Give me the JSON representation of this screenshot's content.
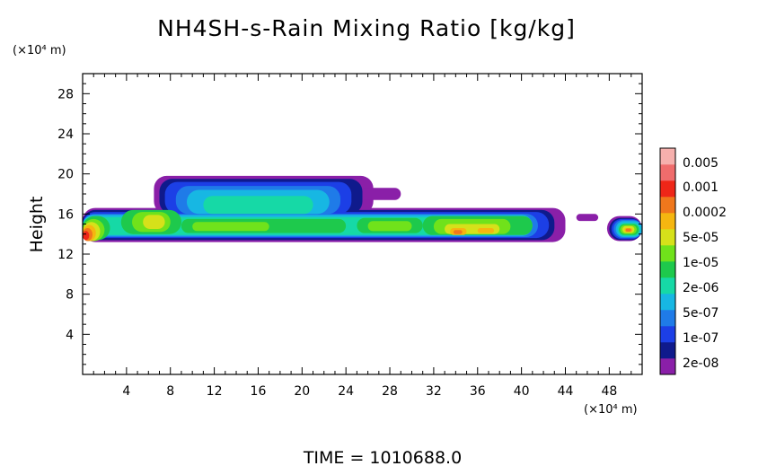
{
  "chart_data": {
    "type": "heatmap",
    "title": "NH4SH-s-Rain Mixing Ratio [kg/kg]",
    "ylabel": "Height",
    "y_unit": "(×10⁴ m)",
    "x_unit": "(×10⁴ m)",
    "footer": "TIME = 1010688.0",
    "xlim": [
      0,
      51
    ],
    "ylim": [
      0,
      30
    ],
    "x_ticks": [
      4,
      8,
      12,
      16,
      20,
      24,
      28,
      32,
      36,
      40,
      44,
      48
    ],
    "y_ticks": [
      4,
      8,
      12,
      16,
      20,
      24,
      28
    ],
    "x_tick_labels": [
      "4",
      "8",
      "12",
      "16",
      "20",
      "24",
      "28",
      "32",
      "36",
      "40",
      "44",
      "48"
    ],
    "y_tick_labels": [
      "4",
      "8",
      "12",
      "16",
      "20",
      "24",
      "28"
    ],
    "colorbar": {
      "colors": [
        "#8a1fa8",
        "#0f1a8c",
        "#1c3fe6",
        "#1f7be8",
        "#17b7e3",
        "#16d9a6",
        "#1ec94c",
        "#70e21b",
        "#d6e11a",
        "#f5b610",
        "#f0771c",
        "#ee2618",
        "#f06c6c",
        "#f6b0ad"
      ],
      "labels": [
        "2e-08",
        "1e-07",
        "5e-07",
        "2e-06",
        "1e-05",
        "5e-05",
        "0.0002",
        "0.001",
        "0.005"
      ]
    },
    "field_description": "Mixing ratio layer between ~13.5 and ~16.5 (×10⁴ m) height spanning x≈0–44 and x≈48–51; upper plume reaching ~19.5 between x≈7–28; highest values (~0.001) near x≈0–1, y≈13.5 and x≈34, y≈14",
    "levels": [
      {
        "name": "level-2e-08",
        "color": "#8a1fa8",
        "blobs": [
          {
            "x": [
              0.0,
              44.0
            ],
            "y": [
              13.2,
              16.6
            ]
          },
          {
            "x": [
              6.5,
              26.5
            ],
            "y": [
              16.0,
              19.8
            ]
          },
          {
            "x": [
              24.0,
              29.0
            ],
            "y": [
              17.4,
              18.6
            ]
          },
          {
            "x": [
              47.8,
              51.0
            ],
            "y": [
              13.3,
              15.8
            ]
          },
          {
            "x": [
              45.0,
              47.0
            ],
            "y": [
              15.3,
              16.0
            ]
          }
        ]
      },
      {
        "name": "level-1e-07",
        "color": "#0f1a8c",
        "blobs": [
          {
            "x": [
              0.0,
              43.0
            ],
            "y": [
              13.4,
              16.4
            ]
          },
          {
            "x": [
              7.0,
              25.5
            ],
            "y": [
              16.0,
              19.5
            ]
          },
          {
            "x": [
              48.0,
              51.0
            ],
            "y": [
              13.4,
              15.6
            ]
          }
        ]
      },
      {
        "name": "level-5e-07",
        "color": "#1c3fe6",
        "blobs": [
          {
            "x": [
              0.0,
              42.5
            ],
            "y": [
              13.6,
              16.2
            ]
          },
          {
            "x": [
              7.5,
              24.5
            ],
            "y": [
              16.0,
              19.2
            ]
          },
          {
            "x": [
              48.2,
              51.0
            ],
            "y": [
              13.5,
              15.5
            ]
          }
        ]
      },
      {
        "name": "level-2e-06",
        "color": "#1f7be8",
        "blobs": [
          {
            "x": [
              0.0,
              41.5
            ],
            "y": [
              13.7,
              16.0
            ]
          },
          {
            "x": [
              8.5,
              23.5
            ],
            "y": [
              16.0,
              18.8
            ]
          },
          {
            "x": [
              48.4,
              51.0
            ],
            "y": [
              13.6,
              15.4
            ]
          }
        ]
      },
      {
        "name": "level-1e-05",
        "color": "#17b7e3",
        "blobs": [
          {
            "x": [
              0.0,
              41.0
            ],
            "y": [
              13.8,
              15.9
            ]
          },
          {
            "x": [
              9.5,
              22.5
            ],
            "y": [
              16.0,
              18.4
            ]
          },
          {
            "x": [
              48.6,
              51.0
            ],
            "y": [
              13.7,
              15.3
            ]
          }
        ]
      },
      {
        "name": "level-5e-05",
        "color": "#16d9a6",
        "blobs": [
          {
            "x": [
              0.0,
              40.0
            ],
            "y": [
              13.9,
              15.7
            ]
          },
          {
            "x": [
              11.0,
              21.0
            ],
            "y": [
              16.0,
              17.8
            ]
          },
          {
            "x": [
              48.8,
              50.8
            ],
            "y": [
              13.8,
              15.1
            ]
          }
        ]
      },
      {
        "name": "level-0.0002",
        "color": "#1ec94c",
        "blobs": [
          {
            "x": [
              0.0,
              2.5
            ],
            "y": [
              13.4,
              15.8
            ]
          },
          {
            "x": [
              3.5,
              9.0
            ],
            "y": [
              14.0,
              16.4
            ]
          },
          {
            "x": [
              9.0,
              24.0
            ],
            "y": [
              14.1,
              15.5
            ]
          },
          {
            "x": [
              25.0,
              31.0
            ],
            "y": [
              14.1,
              15.6
            ]
          },
          {
            "x": [
              31.0,
              41.0
            ],
            "y": [
              13.9,
              15.8
            ]
          },
          {
            "x": [
              48.9,
              50.7
            ],
            "y": [
              13.9,
              15.0
            ]
          }
        ]
      },
      {
        "name": "level-0.001",
        "color": "#70e21b",
        "blobs": [
          {
            "x": [
              0.0,
              2.0
            ],
            "y": [
              13.3,
              15.5
            ]
          },
          {
            "x": [
              4.5,
              8.0
            ],
            "y": [
              14.2,
              16.2
            ]
          },
          {
            "x": [
              10.0,
              17.0
            ],
            "y": [
              14.3,
              15.2
            ]
          },
          {
            "x": [
              26.0,
              30.0
            ],
            "y": [
              14.3,
              15.3
            ]
          },
          {
            "x": [
              32.0,
              39.0
            ],
            "y": [
              14.0,
              15.5
            ]
          },
          {
            "x": [
              49.0,
              50.5
            ],
            "y": [
              14.0,
              14.9
            ]
          }
        ]
      },
      {
        "name": "level-0.005",
        "color": "#d6e11a",
        "blobs": [
          {
            "x": [
              0.0,
              1.6
            ],
            "y": [
              13.3,
              15.2
            ]
          },
          {
            "x": [
              5.5,
              7.5
            ],
            "y": [
              14.5,
              15.9
            ]
          },
          {
            "x": [
              33.0,
              38.0
            ],
            "y": [
              14.0,
              15.0
            ]
          },
          {
            "x": [
              49.2,
              50.3
            ],
            "y": [
              14.1,
              14.8
            ]
          }
        ]
      },
      {
        "name": "level-orange",
        "color": "#f5b610",
        "blobs": [
          {
            "x": [
              0.0,
              1.2
            ],
            "y": [
              13.3,
              14.9
            ]
          },
          {
            "x": [
              33.5,
              35.0
            ],
            "y": [
              13.9,
              14.6
            ]
          },
          {
            "x": [
              36.0,
              37.5
            ],
            "y": [
              14.1,
              14.6
            ]
          },
          {
            "x": [
              49.4,
              50.1
            ],
            "y": [
              14.2,
              14.6
            ]
          }
        ]
      },
      {
        "name": "level-dark-orange",
        "color": "#f0771c",
        "blobs": [
          {
            "x": [
              0.0,
              0.9
            ],
            "y": [
              13.3,
              14.6
            ]
          },
          {
            "x": [
              33.8,
              34.6
            ],
            "y": [
              14.0,
              14.4
            ]
          },
          {
            "x": [
              49.5,
              50.0
            ],
            "y": [
              14.25,
              14.55
            ]
          }
        ]
      },
      {
        "name": "level-red",
        "color": "#ee2618",
        "blobs": [
          {
            "x": [
              0.0,
              0.6
            ],
            "y": [
              13.4,
              14.3
            ]
          }
        ]
      }
    ]
  }
}
